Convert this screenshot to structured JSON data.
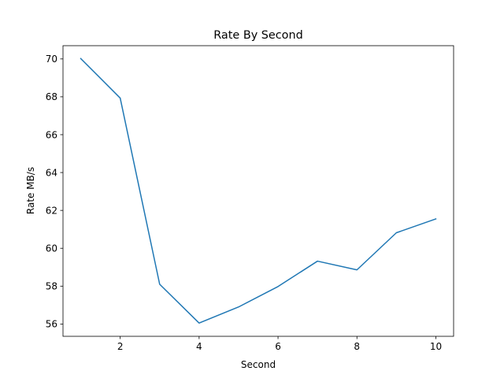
{
  "chart_data": {
    "type": "line",
    "title": "Rate By Second",
    "xlabel": "Second",
    "ylabel": "Rate MB/s",
    "xlim": [
      0.55,
      10.45
    ],
    "ylim": [
      55.35,
      70.7
    ],
    "xticks": [
      2,
      4,
      6,
      8,
      10
    ],
    "yticks": [
      56,
      58,
      60,
      62,
      64,
      66,
      68,
      70
    ],
    "grid": false,
    "series": [
      {
        "color": "#1f77b4",
        "x": [
          1,
          2,
          3,
          4,
          5,
          6,
          7,
          8,
          9,
          10
        ],
        "y": [
          70.02,
          67.93,
          58.1,
          56.05,
          56.9,
          57.98,
          59.32,
          58.86,
          60.82,
          61.55
        ]
      }
    ]
  }
}
